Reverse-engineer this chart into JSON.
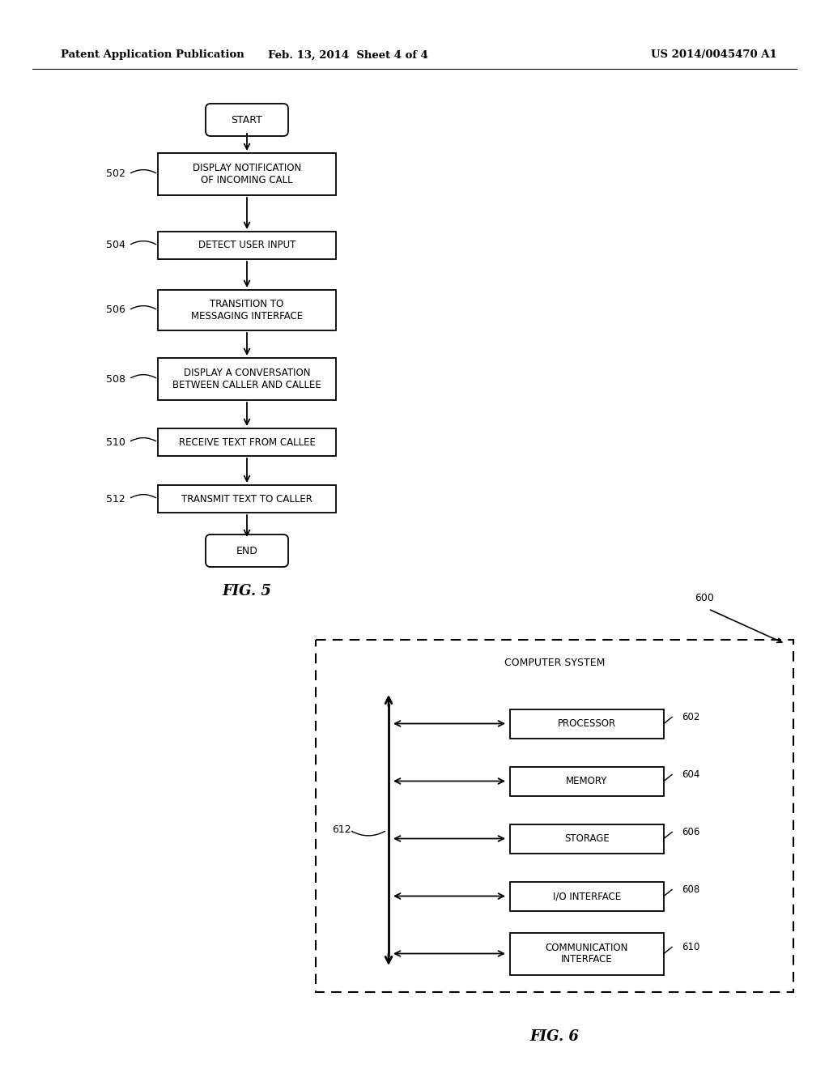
{
  "bg_color": "#ffffff",
  "header_left": "Patent Application Publication",
  "header_center": "Feb. 13, 2014  Sheet 4 of 4",
  "header_right": "US 2014/0045470 A1",
  "fig5_title": "FIG. 5",
  "fig6_title": "FIG. 6",
  "fig5_start_label": "START",
  "fig5_end_label": "END",
  "fig5_boxes": [
    {
      "label": "DISPLAY NOTIFICATION\nOF INCOMING CALL",
      "ref": "502"
    },
    {
      "label": "DETECT USER INPUT",
      "ref": "504"
    },
    {
      "label": "TRANSITION TO\nMESSAGING INTERFACE",
      "ref": "506"
    },
    {
      "label": "DISPLAY A CONVERSATION\nBETWEEN CALLER AND CALLEE",
      "ref": "508"
    },
    {
      "label": "RECEIVE TEXT FROM CALLEE",
      "ref": "510"
    },
    {
      "label": "TRANSMIT TEXT TO CALLER",
      "ref": "512"
    }
  ],
  "fig6_components": [
    "PROCESSOR",
    "MEMORY",
    "STORAGE",
    "I/O INTERFACE",
    "COMMUNICATION\nINTERFACE"
  ],
  "fig6_refs": [
    "602",
    "604",
    "606",
    "608",
    "610"
  ],
  "fig6_bus_label": "612",
  "fig6_system_label": "600",
  "fig6_system_title": "COMPUTER SYSTEM"
}
